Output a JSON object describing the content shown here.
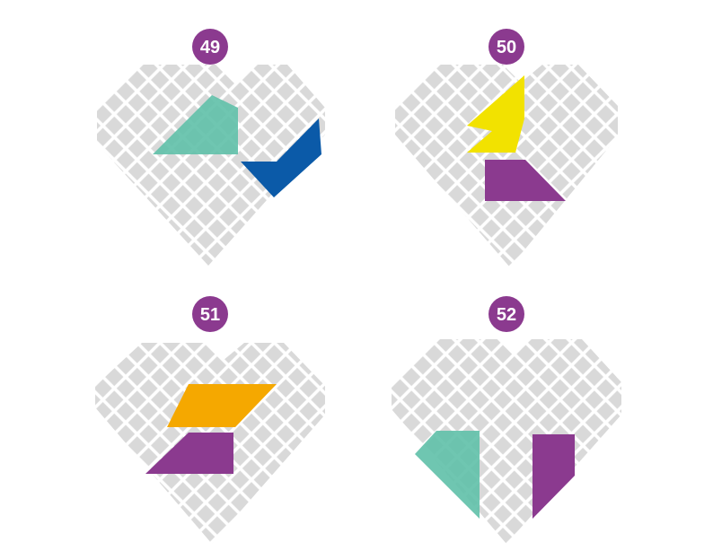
{
  "colors": {
    "background": "#ffffff",
    "tile": "#d9d9d9",
    "badge": "#8b3a8f",
    "badge_text": "#ffffff",
    "teal": "#5fc0a8",
    "blue": "#0b5aa8",
    "yellow": "#f2e200",
    "purple": "#8b3a8f",
    "orange": "#f5a800"
  },
  "puzzles": [
    {
      "number": "49",
      "pieces": [
        {
          "color": "teal",
          "shape": "triangle"
        },
        {
          "color": "blue",
          "shape": "parallelogram"
        }
      ]
    },
    {
      "number": "50",
      "pieces": [
        {
          "color": "yellow",
          "shape": "parallelogram"
        },
        {
          "color": "purple",
          "shape": "trapezoid"
        }
      ]
    },
    {
      "number": "51",
      "pieces": [
        {
          "color": "orange",
          "shape": "parallelogram"
        },
        {
          "color": "purple",
          "shape": "trapezoid"
        }
      ]
    },
    {
      "number": "52",
      "pieces": [
        {
          "color": "teal",
          "shape": "triangle"
        },
        {
          "color": "purple",
          "shape": "trapezoid"
        }
      ]
    }
  ]
}
